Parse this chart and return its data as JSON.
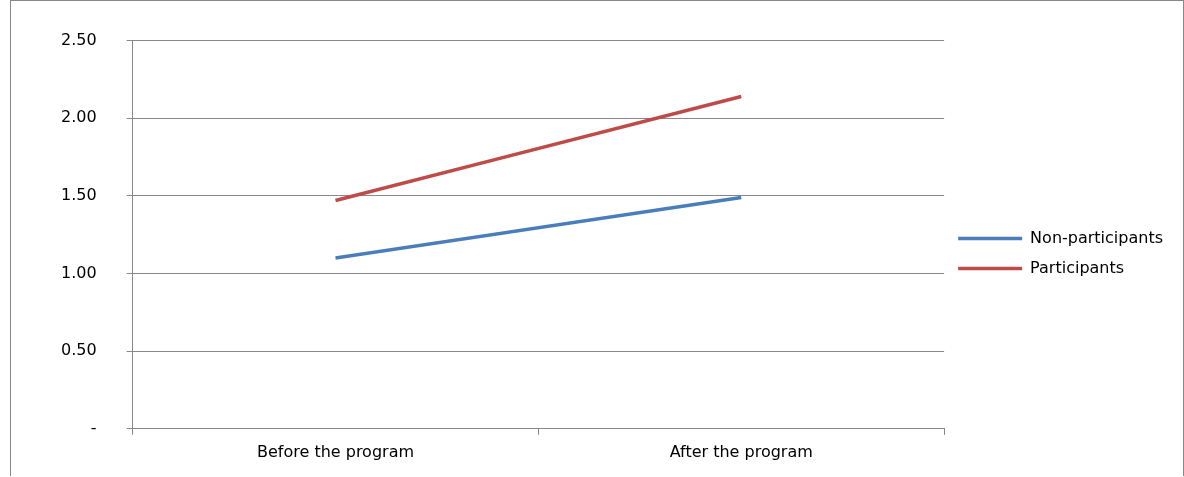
{
  "chart_data": {
    "type": "line",
    "categories": [
      "Before the program",
      "After the program"
    ],
    "series": [
      {
        "name": "Non-participants",
        "color": "#4a7ebb",
        "values": [
          1.1,
          1.49
        ]
      },
      {
        "name": "Participants",
        "color": "#be4b48",
        "values": [
          1.47,
          2.14
        ]
      }
    ],
    "ylim": [
      0,
      2.5
    ],
    "yticks": [
      {
        "value": 0,
        "label": "-"
      },
      {
        "value": 0.5,
        "label": "0.50"
      },
      {
        "value": 1,
        "label": "1.00"
      },
      {
        "value": 1.5,
        "label": "1.50"
      },
      {
        "value": 2,
        "label": "2.00"
      },
      {
        "value": 2.5,
        "label": "2.50"
      }
    ],
    "grid": "y",
    "legend": "right",
    "marker": "none",
    "line_style": "solid"
  }
}
